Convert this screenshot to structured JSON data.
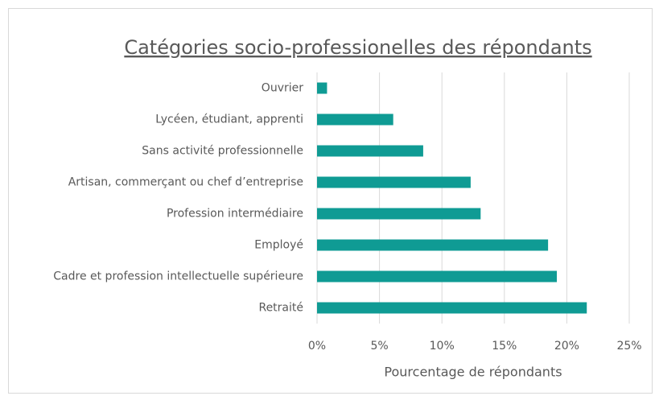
{
  "chart_data": {
    "type": "hbar",
    "title": "Catégories socio-professionelles des répondants",
    "x_label": "Pourcentage de répondants",
    "categories": [
      "Ouvrier",
      "Lycéen, étudiant, apprenti",
      "Sans activité professionnelle",
      "Artisan, commerçant ou chef d’entreprise",
      "Profession intermédiaire",
      "Employé",
      "Cadre et profession intellectuelle supérieure",
      "Retraité"
    ],
    "values": [
      0.8,
      6.1,
      8.5,
      12.3,
      13.1,
      18.5,
      19.2,
      21.6
    ],
    "color": "#0f9b94",
    "xlim": [
      0,
      25
    ],
    "xticks": [
      {
        "value": 0,
        "label": "0%"
      },
      {
        "value": 5,
        "label": "5%"
      },
      {
        "value": 10,
        "label": "10%"
      },
      {
        "value": 15,
        "label": "15%"
      },
      {
        "value": 20,
        "label": "20%"
      },
      {
        "value": 25,
        "label": "25%"
      }
    ],
    "grid": true
  }
}
